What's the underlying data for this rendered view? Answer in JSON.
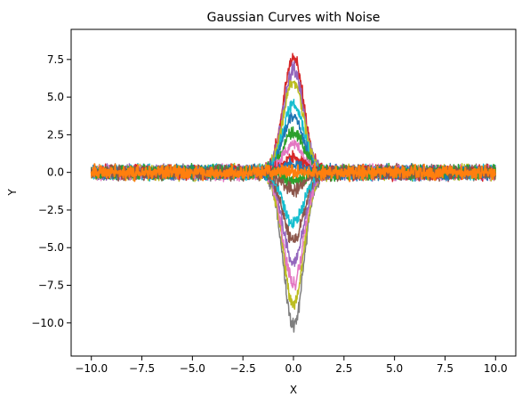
{
  "chart_data": {
    "type": "line",
    "title": "Gaussian Curves with Noise",
    "xlabel": "X",
    "ylabel": "Y",
    "xlim": [
      -11.0,
      11.0
    ],
    "ylim": [
      -12.2,
      9.5
    ],
    "x_ticks": [
      -10.0,
      -7.5,
      -5.0,
      -2.5,
      0.0,
      2.5,
      5.0,
      7.5,
      10.0
    ],
    "x_tick_labels": [
      "−10.0",
      "−7.5",
      "−5.0",
      "−2.5",
      "0.0",
      "2.5",
      "5.0",
      "7.5",
      "10.0"
    ],
    "y_ticks": [
      -10.0,
      -7.5,
      -5.0,
      -2.5,
      0.0,
      2.5,
      5.0,
      7.5
    ],
    "y_tick_labels": [
      "−10.0",
      "−7.5",
      "−5.0",
      "−2.5",
      "0.0",
      "2.5",
      "5.0",
      "7.5"
    ],
    "grid": false,
    "x_start": -10,
    "x_end": 10,
    "curve_width": 0.5,
    "noise_amplitude": 0.65,
    "series": [
      {
        "amplitude": -10.2,
        "color": "#7f7f7f"
      },
      {
        "amplitude": -8.8,
        "color": "#bcbd22"
      },
      {
        "amplitude": -7.4,
        "color": "#e377c2"
      },
      {
        "amplitude": -6.0,
        "color": "#9467bd"
      },
      {
        "amplitude": -4.6,
        "color": "#8c564b"
      },
      {
        "amplitude": -3.4,
        "color": "#17becf"
      },
      {
        "amplitude": 7.7,
        "color": "#d62728"
      },
      {
        "amplitude": 6.8,
        "color": "#9467bd"
      },
      {
        "amplitude": 6.0,
        "color": "#bcbd22"
      },
      {
        "amplitude": 4.6,
        "color": "#17becf"
      },
      {
        "amplitude": 3.7,
        "color": "#1f77b4"
      },
      {
        "amplitude": 2.7,
        "color": "#2ca02c"
      },
      {
        "amplitude": 1.8,
        "color": "#e377c2"
      },
      {
        "amplitude": 1.0,
        "color": "#d62728"
      },
      {
        "amplitude": 0.5,
        "color": "#1f77b4"
      },
      {
        "amplitude": -0.6,
        "color": "#2ca02c"
      },
      {
        "amplitude": -1.2,
        "color": "#8c564b"
      },
      {
        "amplitude": 0.0,
        "color": "#ff7f0e"
      }
    ]
  }
}
